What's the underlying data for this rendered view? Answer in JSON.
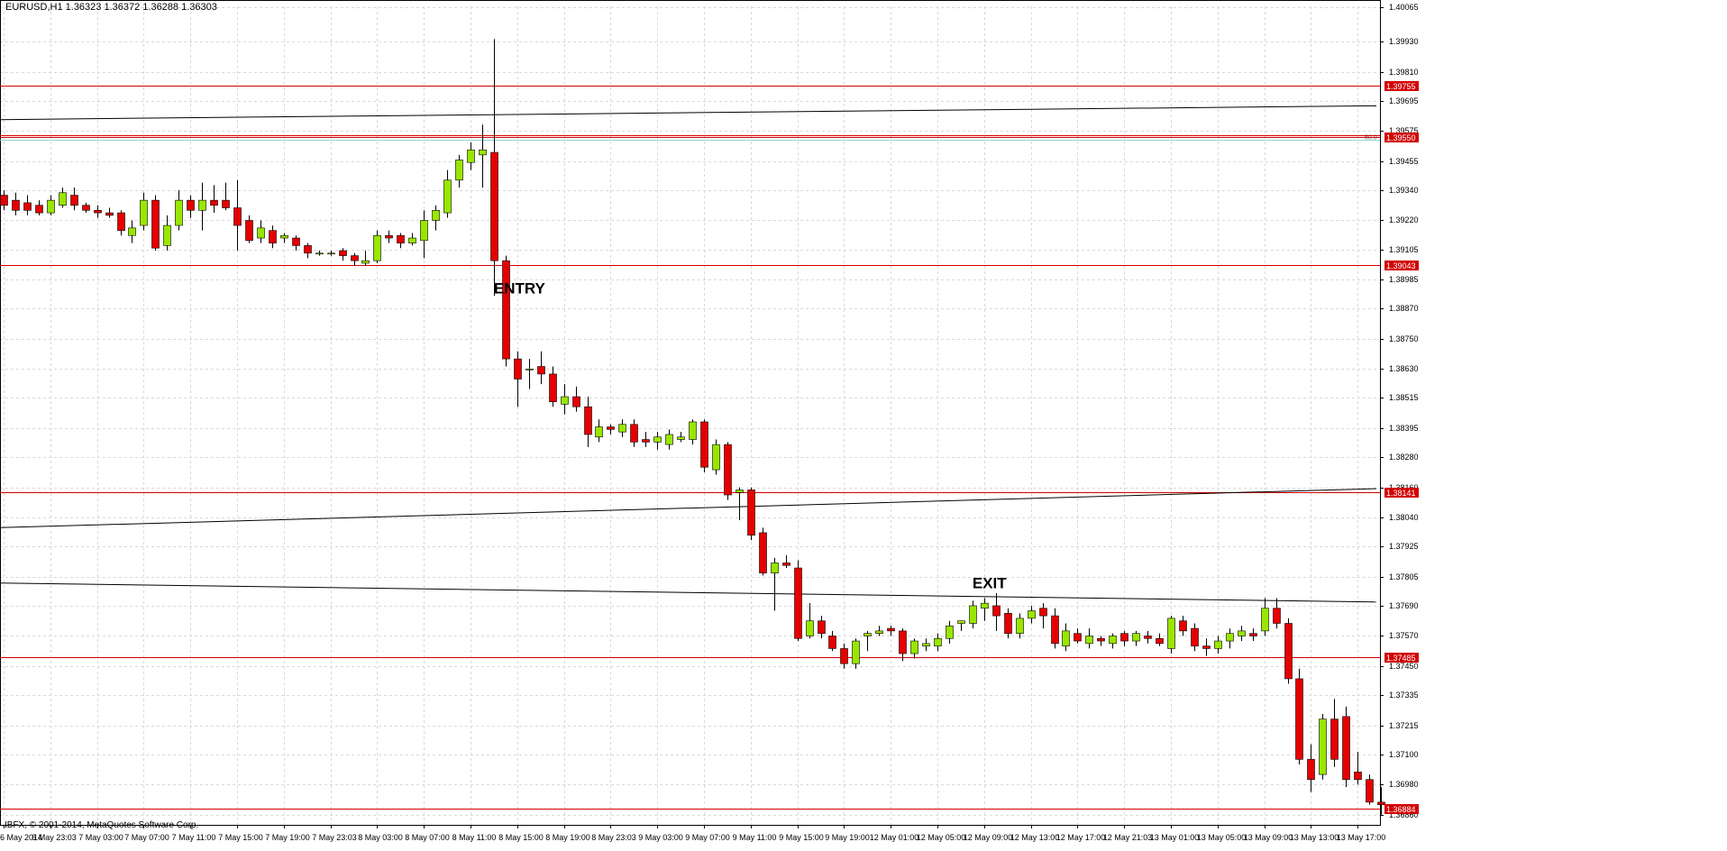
{
  "header": {
    "symbol": "EURUSD,H1",
    "ohlc": "1.36323 1.36372 1.36288 1.36303"
  },
  "copyright": "IBFX, © 2001-2014, MetaQuotes Software Corp.",
  "colors": {
    "bull": "#99e600",
    "bear": "#e60000",
    "level_line": "#d20000",
    "trend_line": "#000000",
    "grid": "#d9d9d9",
    "teal_line": "#88d8d8"
  },
  "chart_data": {
    "type": "candlestick",
    "title": "",
    "xlabel": "",
    "ylabel": "",
    "ylim": [
      1.3682,
      1.4007
    ],
    "grid": true,
    "price_ticks": [
      "1.40065",
      "1.39930",
      "1.39810",
      "1.39695",
      "1.39575",
      "1.39455",
      "1.39340",
      "1.39220",
      "1.39105",
      "1.38985",
      "1.38870",
      "1.38750",
      "1.38630",
      "1.38515",
      "1.38395",
      "1.38280",
      "1.38160",
      "1.38040",
      "1.37925",
      "1.37805",
      "1.37690",
      "1.37570",
      "1.37450",
      "1.37335",
      "1.37215",
      "1.37100",
      "1.36980",
      "1.36860"
    ],
    "time_labels": [
      "6 May 2014",
      "6 May 23:03",
      "7 May 03:00",
      "7 May 07:00",
      "7 May 11:00",
      "7 May 15:00",
      "7 May 19:00",
      "7 May 23:03",
      "8 May 03:00",
      "8 May 07:00",
      "8 May 11:00",
      "8 May 15:00",
      "8 May 19:00",
      "8 May 23:03",
      "9 May 03:00",
      "9 May 07:00",
      "9 May 11:00",
      "9 May 15:00",
      "9 May 19:00",
      "12 May 01:00",
      "12 May 05:00",
      "12 May 09:00",
      "12 May 13:00",
      "12 May 17:00",
      "12 May 21:03",
      "13 May 01:00",
      "13 May 05:00",
      "13 May 09:00",
      "13 May 13:00",
      "13 May 17:00"
    ],
    "levels": [
      {
        "price": 1.39755,
        "label": "1.39755"
      },
      {
        "price": 1.3955,
        "label": "1.39550"
      },
      {
        "price": 1.39043,
        "label": "1.39043"
      },
      {
        "price": 1.38141,
        "label": "1.38141"
      },
      {
        "price": 1.37485,
        "label": "1.37485"
      },
      {
        "price": 1.36884,
        "label": "1.36884"
      }
    ],
    "fib_label": "50.0",
    "annotations": [
      {
        "text": "ENTRY",
        "bar": 42,
        "price": 1.3893
      },
      {
        "text": "EXIT",
        "bar": 83,
        "price": 1.3776
      }
    ],
    "trendlines": [
      {
        "start_bar": -0.4,
        "start_price": 1.3962,
        "end_bar": 117.6,
        "end_price": 1.39675
      },
      {
        "start_bar": -0.4,
        "start_price": 1.38,
        "end_bar": 117.6,
        "end_price": 1.38155
      },
      {
        "start_bar": -0.4,
        "start_price": 1.3778,
        "end_bar": 117.6,
        "end_price": 1.37705
      }
    ],
    "candles": [
      {
        "o": 1.3932,
        "h": 1.3934,
        "l": 1.3926,
        "c": 1.3928
      },
      {
        "o": 1.393,
        "h": 1.3933,
        "l": 1.3924,
        "c": 1.3926
      },
      {
        "o": 1.3929,
        "h": 1.3932,
        "l": 1.3924,
        "c": 1.3926
      },
      {
        "o": 1.3928,
        "h": 1.393,
        "l": 1.3924,
        "c": 1.3925
      },
      {
        "o": 1.3925,
        "h": 1.3932,
        "l": 1.3924,
        "c": 1.393
      },
      {
        "o": 1.3928,
        "h": 1.3935,
        "l": 1.3927,
        "c": 1.3933
      },
      {
        "o": 1.3932,
        "h": 1.3935,
        "l": 1.3926,
        "c": 1.3928
      },
      {
        "o": 1.3928,
        "h": 1.3929,
        "l": 1.3925,
        "c": 1.3926
      },
      {
        "o": 1.3926,
        "h": 1.3928,
        "l": 1.3923,
        "c": 1.3925
      },
      {
        "o": 1.3925,
        "h": 1.3927,
        "l": 1.3923,
        "c": 1.3924
      },
      {
        "o": 1.3925,
        "h": 1.3926,
        "l": 1.3916,
        "c": 1.3918
      },
      {
        "o": 1.3916,
        "h": 1.3922,
        "l": 1.3913,
        "c": 1.3919
      },
      {
        "o": 1.392,
        "h": 1.3933,
        "l": 1.3918,
        "c": 1.393
      },
      {
        "o": 1.393,
        "h": 1.3932,
        "l": 1.391,
        "c": 1.3911
      },
      {
        "o": 1.3912,
        "h": 1.3924,
        "l": 1.391,
        "c": 1.392
      },
      {
        "o": 1.392,
        "h": 1.3934,
        "l": 1.3918,
        "c": 1.393
      },
      {
        "o": 1.393,
        "h": 1.3932,
        "l": 1.3923,
        "c": 1.3926
      },
      {
        "o": 1.3926,
        "h": 1.3937,
        "l": 1.3918,
        "c": 1.393
      },
      {
        "o": 1.393,
        "h": 1.3936,
        "l": 1.3925,
        "c": 1.3928
      },
      {
        "o": 1.393,
        "h": 1.3937,
        "l": 1.3926,
        "c": 1.3927
      },
      {
        "o": 1.3927,
        "h": 1.3938,
        "l": 1.391,
        "c": 1.392
      },
      {
        "o": 1.3922,
        "h": 1.3924,
        "l": 1.3913,
        "c": 1.3914
      },
      {
        "o": 1.3915,
        "h": 1.3922,
        "l": 1.3913,
        "c": 1.3919
      },
      {
        "o": 1.3918,
        "h": 1.392,
        "l": 1.3911,
        "c": 1.3913
      },
      {
        "o": 1.3915,
        "h": 1.3917,
        "l": 1.3913,
        "c": 1.3916
      },
      {
        "o": 1.3915,
        "h": 1.3916,
        "l": 1.391,
        "c": 1.3912
      },
      {
        "o": 1.3912,
        "h": 1.3913,
        "l": 1.3907,
        "c": 1.3909
      },
      {
        "o": 1.3909,
        "h": 1.391,
        "l": 1.3908,
        "c": 1.3909
      },
      {
        "o": 1.3909,
        "h": 1.391,
        "l": 1.3908,
        "c": 1.3909
      },
      {
        "o": 1.391,
        "h": 1.3911,
        "l": 1.3906,
        "c": 1.3908
      },
      {
        "o": 1.3908,
        "h": 1.3909,
        "l": 1.3904,
        "c": 1.3906
      },
      {
        "o": 1.3905,
        "h": 1.391,
        "l": 1.3904,
        "c": 1.3906
      },
      {
        "o": 1.3906,
        "h": 1.3918,
        "l": 1.3905,
        "c": 1.3916
      },
      {
        "o": 1.3916,
        "h": 1.3918,
        "l": 1.3913,
        "c": 1.3915
      },
      {
        "o": 1.3916,
        "h": 1.3917,
        "l": 1.3911,
        "c": 1.3913
      },
      {
        "o": 1.3913,
        "h": 1.3917,
        "l": 1.3912,
        "c": 1.3915
      },
      {
        "o": 1.3914,
        "h": 1.3926,
        "l": 1.3907,
        "c": 1.3922
      },
      {
        "o": 1.3922,
        "h": 1.3928,
        "l": 1.3918,
        "c": 1.3926
      },
      {
        "o": 1.3925,
        "h": 1.3942,
        "l": 1.3923,
        "c": 1.3938
      },
      {
        "o": 1.3938,
        "h": 1.3948,
        "l": 1.3935,
        "c": 1.3946
      },
      {
        "o": 1.3945,
        "h": 1.3953,
        "l": 1.3942,
        "c": 1.395
      },
      {
        "o": 1.3948,
        "h": 1.396,
        "l": 1.3935,
        "c": 1.395
      },
      {
        "o": 1.3949,
        "h": 1.3994,
        "l": 1.3892,
        "c": 1.3906
      },
      {
        "o": 1.3906,
        "h": 1.3908,
        "l": 1.3864,
        "c": 1.3867
      },
      {
        "o": 1.3867,
        "h": 1.387,
        "l": 1.3848,
        "c": 1.3859
      },
      {
        "o": 1.3863,
        "h": 1.3867,
        "l": 1.3855,
        "c": 1.3863
      },
      {
        "o": 1.3864,
        "h": 1.387,
        "l": 1.3857,
        "c": 1.3861
      },
      {
        "o": 1.3861,
        "h": 1.3864,
        "l": 1.3848,
        "c": 1.385
      },
      {
        "o": 1.3849,
        "h": 1.3857,
        "l": 1.3845,
        "c": 1.3852
      },
      {
        "o": 1.3852,
        "h": 1.3856,
        "l": 1.3846,
        "c": 1.3848
      },
      {
        "o": 1.3848,
        "h": 1.3852,
        "l": 1.3832,
        "c": 1.3837
      },
      {
        "o": 1.3836,
        "h": 1.3843,
        "l": 1.3834,
        "c": 1.384
      },
      {
        "o": 1.384,
        "h": 1.3841,
        "l": 1.3837,
        "c": 1.3839
      },
      {
        "o": 1.3838,
        "h": 1.3843,
        "l": 1.3836,
        "c": 1.3841
      },
      {
        "o": 1.3841,
        "h": 1.3843,
        "l": 1.3832,
        "c": 1.3834
      },
      {
        "o": 1.3835,
        "h": 1.3838,
        "l": 1.3832,
        "c": 1.3834
      },
      {
        "o": 1.3834,
        "h": 1.3838,
        "l": 1.3831,
        "c": 1.3836
      },
      {
        "o": 1.3833,
        "h": 1.3839,
        "l": 1.3831,
        "c": 1.3837
      },
      {
        "o": 1.3835,
        "h": 1.3838,
        "l": 1.3834,
        "c": 1.3836
      },
      {
        "o": 1.3835,
        "h": 1.3843,
        "l": 1.3833,
        "c": 1.3842
      },
      {
        "o": 1.3842,
        "h": 1.3843,
        "l": 1.3822,
        "c": 1.3824
      },
      {
        "o": 1.3823,
        "h": 1.3835,
        "l": 1.3821,
        "c": 1.3833
      },
      {
        "o": 1.3833,
        "h": 1.3834,
        "l": 1.3811,
        "c": 1.3813
      },
      {
        "o": 1.3814,
        "h": 1.3816,
        "l": 1.3803,
        "c": 1.3815
      },
      {
        "o": 1.3815,
        "h": 1.3816,
        "l": 1.3795,
        "c": 1.3797
      },
      {
        "o": 1.3798,
        "h": 1.38,
        "l": 1.3781,
        "c": 1.3782
      },
      {
        "o": 1.3782,
        "h": 1.3788,
        "l": 1.3767,
        "c": 1.3786
      },
      {
        "o": 1.3786,
        "h": 1.3789,
        "l": 1.3784,
        "c": 1.3785
      },
      {
        "o": 1.3784,
        "h": 1.3787,
        "l": 1.3755,
        "c": 1.3756
      },
      {
        "o": 1.3757,
        "h": 1.377,
        "l": 1.3756,
        "c": 1.3763
      },
      {
        "o": 1.3763,
        "h": 1.3765,
        "l": 1.3756,
        "c": 1.3758
      },
      {
        "o": 1.3757,
        "h": 1.3759,
        "l": 1.3751,
        "c": 1.3752
      },
      {
        "o": 1.3752,
        "h": 1.3754,
        "l": 1.3744,
        "c": 1.3746
      },
      {
        "o": 1.3746,
        "h": 1.3756,
        "l": 1.3744,
        "c": 1.3755
      },
      {
        "o": 1.3757,
        "h": 1.3759,
        "l": 1.3751,
        "c": 1.3758
      },
      {
        "o": 1.3758,
        "h": 1.3761,
        "l": 1.3757,
        "c": 1.3759
      },
      {
        "o": 1.376,
        "h": 1.3761,
        "l": 1.3757,
        "c": 1.3759
      },
      {
        "o": 1.3759,
        "h": 1.376,
        "l": 1.3747,
        "c": 1.375
      },
      {
        "o": 1.375,
        "h": 1.3756,
        "l": 1.3748,
        "c": 1.3755
      },
      {
        "o": 1.3753,
        "h": 1.3756,
        "l": 1.3751,
        "c": 1.3754
      },
      {
        "o": 1.3753,
        "h": 1.3758,
        "l": 1.3751,
        "c": 1.3756
      },
      {
        "o": 1.3756,
        "h": 1.3763,
        "l": 1.3754,
        "c": 1.3761
      },
      {
        "o": 1.3762,
        "h": 1.3763,
        "l": 1.3759,
        "c": 1.3763
      },
      {
        "o": 1.3762,
        "h": 1.3771,
        "l": 1.376,
        "c": 1.3769
      },
      {
        "o": 1.3768,
        "h": 1.3772,
        "l": 1.3763,
        "c": 1.377
      },
      {
        "o": 1.3769,
        "h": 1.3774,
        "l": 1.3759,
        "c": 1.3765
      },
      {
        "o": 1.3766,
        "h": 1.3768,
        "l": 1.3756,
        "c": 1.3758
      },
      {
        "o": 1.3758,
        "h": 1.3766,
        "l": 1.3756,
        "c": 1.3764
      },
      {
        "o": 1.3764,
        "h": 1.3769,
        "l": 1.3762,
        "c": 1.3767
      },
      {
        "o": 1.3768,
        "h": 1.377,
        "l": 1.376,
        "c": 1.3765
      },
      {
        "o": 1.3765,
        "h": 1.3768,
        "l": 1.3752,
        "c": 1.3754
      },
      {
        "o": 1.3753,
        "h": 1.3762,
        "l": 1.3751,
        "c": 1.3759
      },
      {
        "o": 1.3758,
        "h": 1.376,
        "l": 1.3754,
        "c": 1.3755
      },
      {
        "o": 1.3754,
        "h": 1.376,
        "l": 1.3752,
        "c": 1.3757
      },
      {
        "o": 1.3756,
        "h": 1.3757,
        "l": 1.3753,
        "c": 1.3755
      },
      {
        "o": 1.3754,
        "h": 1.3758,
        "l": 1.3752,
        "c": 1.3757
      },
      {
        "o": 1.3758,
        "h": 1.3759,
        "l": 1.3753,
        "c": 1.3755
      },
      {
        "o": 1.3755,
        "h": 1.3759,
        "l": 1.3753,
        "c": 1.3758
      },
      {
        "o": 1.3757,
        "h": 1.3759,
        "l": 1.3754,
        "c": 1.3756
      },
      {
        "o": 1.3756,
        "h": 1.3758,
        "l": 1.3753,
        "c": 1.3754
      },
      {
        "o": 1.3752,
        "h": 1.3765,
        "l": 1.375,
        "c": 1.3764
      },
      {
        "o": 1.3763,
        "h": 1.3765,
        "l": 1.3757,
        "c": 1.3759
      },
      {
        "o": 1.376,
        "h": 1.3762,
        "l": 1.3751,
        "c": 1.3753
      },
      {
        "o": 1.3753,
        "h": 1.3756,
        "l": 1.3749,
        "c": 1.3752
      },
      {
        "o": 1.3752,
        "h": 1.3757,
        "l": 1.375,
        "c": 1.3755
      },
      {
        "o": 1.3755,
        "h": 1.376,
        "l": 1.3752,
        "c": 1.3758
      },
      {
        "o": 1.3757,
        "h": 1.3761,
        "l": 1.3755,
        "c": 1.3759
      },
      {
        "o": 1.3758,
        "h": 1.376,
        "l": 1.3755,
        "c": 1.3757
      },
      {
        "o": 1.3759,
        "h": 1.3772,
        "l": 1.3757,
        "c": 1.3768
      },
      {
        "o": 1.3768,
        "h": 1.3772,
        "l": 1.376,
        "c": 1.3762
      },
      {
        "o": 1.3762,
        "h": 1.3764,
        "l": 1.3738,
        "c": 1.374
      },
      {
        "o": 1.374,
        "h": 1.3744,
        "l": 1.3706,
        "c": 1.3708
      },
      {
        "o": 1.3708,
        "h": 1.3714,
        "l": 1.3695,
        "c": 1.37
      },
      {
        "o": 1.3702,
        "h": 1.3726,
        "l": 1.37,
        "c": 1.3724
      },
      {
        "o": 1.3724,
        "h": 1.3732,
        "l": 1.3705,
        "c": 1.3708
      },
      {
        "o": 1.3725,
        "h": 1.3729,
        "l": 1.3697,
        "c": 1.37
      },
      {
        "o": 1.3703,
        "h": 1.3711,
        "l": 1.3698,
        "c": 1.37
      },
      {
        "o": 1.37,
        "h": 1.3702,
        "l": 1.369,
        "c": 1.3691
      },
      {
        "o": 1.3691,
        "h": 1.3697,
        "l": 1.3686,
        "c": 1.369
      }
    ]
  }
}
